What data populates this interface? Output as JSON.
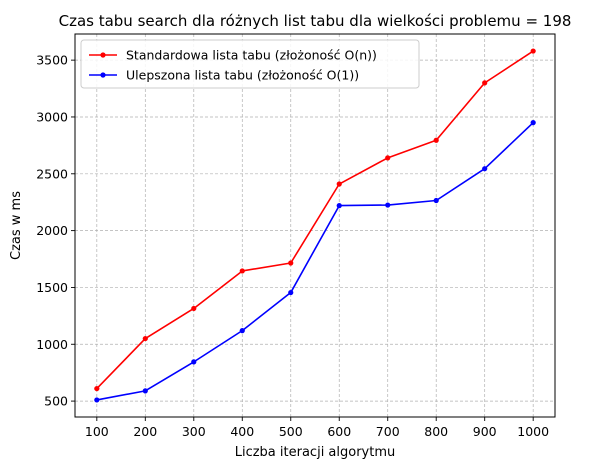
{
  "chart_data": {
    "type": "line",
    "title": "Czas tabu search dla różnych list tabu dla wielkości problemu = 198",
    "xlabel": "Liczba iteracji algorytmu",
    "ylabel": "Czas w ms",
    "x": [
      100,
      200,
      300,
      400,
      500,
      600,
      700,
      800,
      900,
      1000
    ],
    "x_ticks": [
      100,
      200,
      300,
      400,
      500,
      600,
      700,
      800,
      900,
      1000
    ],
    "y_ticks": [
      500,
      1000,
      1500,
      2000,
      2500,
      3000,
      3500
    ],
    "xlim": [
      55,
      1045
    ],
    "ylim": [
      360,
      3730
    ],
    "grid": true,
    "legend_position": "top-left",
    "series": [
      {
        "name": "Standardowa lista tabu (złożoność O(n))",
        "color": "#ff0000",
        "marker": "dot",
        "values": [
          610,
          1050,
          1315,
          1645,
          1715,
          2410,
          2640,
          2795,
          3300,
          3580
        ]
      },
      {
        "name": "Ulepszona lista tabu (złożoność O(1))",
        "color": "#0000ff",
        "marker": "dot",
        "values": [
          510,
          590,
          845,
          1120,
          1455,
          2220,
          2225,
          2265,
          2545,
          2950
        ]
      }
    ]
  }
}
